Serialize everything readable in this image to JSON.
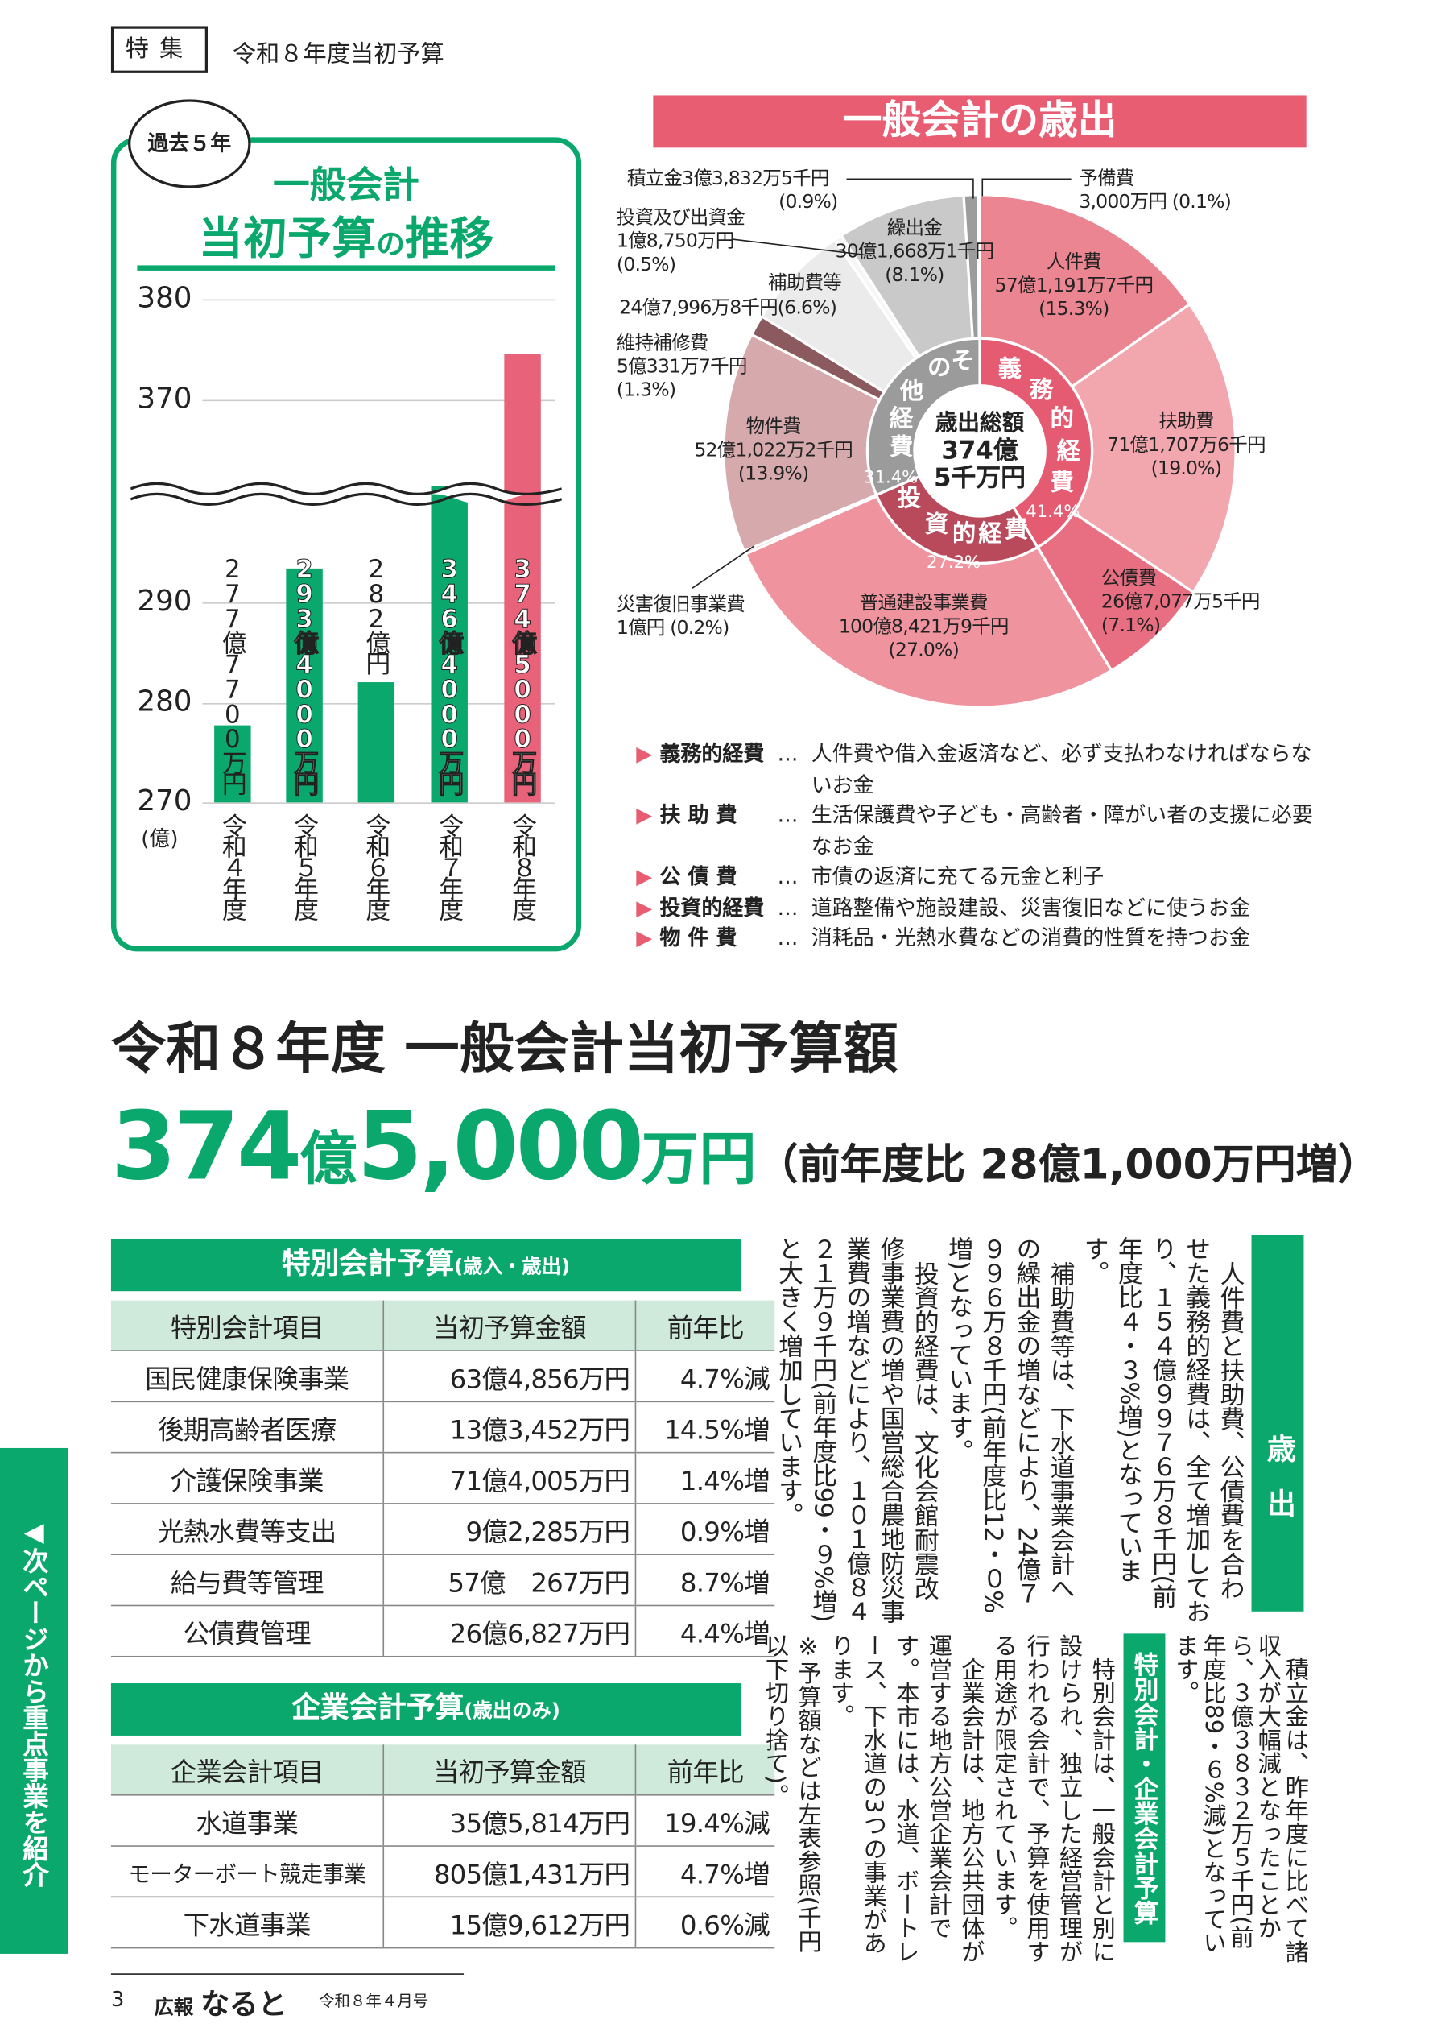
{
  "header": {
    "feature_tag": "特集",
    "section_title": "令和８年度当初予算"
  },
  "trend_chart": {
    "bubble": "過去５年",
    "title_line1": "一般会計",
    "title_line2a": "当初予算",
    "title_line2b": "の",
    "title_line2c": "推移",
    "unit_label": "(億)"
  },
  "expenditure_title": "一般会計の歳出",
  "donut_center": {
    "line1": "歳出総額",
    "line2": "374億",
    "line3": "5千万円"
  },
  "legend": [
    {
      "term": "義務的経費",
      "desc": "人件費や借入金返済など、必ず支払わなければならないお金"
    },
    {
      "term": "扶 助 費",
      "desc": "生活保護費や子ども・高齢者・障がい者の支援に必要なお金"
    },
    {
      "term": "公 債 費",
      "desc": "市債の返済に充てる元金と利子"
    },
    {
      "term": "投資的経費",
      "desc": "道路整備や施設建設、災害復旧などに使うお金"
    },
    {
      "term": "物 件 費",
      "desc": "消耗品・光熱水費などの消費的性質を持つお金"
    }
  ],
  "legend_dots": "…",
  "headline": {
    "title": "令和８年度 一般会計当初予算額",
    "amount_oku": "374",
    "unit_oku": "億",
    "amount_man": "5,000",
    "unit_man": "万円",
    "comparison": "（前年度比 28億1,000万円増）"
  },
  "special_table": {
    "caption": "特別会計予算",
    "caption_note": "(歳入・歳出)",
    "headers": [
      "特別会計項目",
      "当初予算金額",
      "前年比"
    ],
    "rows": [
      [
        "国民健康保険事業",
        "63億4,856万円",
        "4.7%減"
      ],
      [
        "後期高齢者医療",
        "13億3,452万円",
        "14.5%増"
      ],
      [
        "介護保険事業",
        "71億4,005万円",
        "1.4%増"
      ],
      [
        "光熱水費等支出",
        "9億2,285万円",
        "0.9%増"
      ],
      [
        "給与費等管理",
        "57億　267万円",
        "8.7%増"
      ],
      [
        "公債費管理",
        "26億6,827万円",
        "4.4%増"
      ]
    ]
  },
  "enterprise_table": {
    "caption": "企業会計予算",
    "caption_note": "(歳出のみ)",
    "headers": [
      "企業会計項目",
      "当初予算金額",
      "前年比"
    ],
    "rows": [
      [
        "水道事業",
        "35億5,814万円",
        "19.4%減"
      ],
      [
        "モーターボート競走事業",
        "805億1,431万円",
        "4.7%増"
      ],
      [
        "下水道事業",
        "15億9,612万円",
        "0.6%減"
      ]
    ]
  },
  "article": {
    "tag1": "歳出",
    "p1": "人件費と扶助費、公債費を合わせた義務的経費は、全て増加しており、１５４億９９７６万８千円(前年度比４・３%増)となっています。",
    "p2": "補助費等は、下水道事業会計への繰出金の増などにより、24億７９９６万８千円(前年度比12・０%増)となっています。",
    "p3": "投資的経費は、文化会館耐震改修事業費の増や国営総合農地防災事業費の増などにより、１０１億８４２１万９千円(前年度比99・９%増)と大きく増加しています。",
    "p4": "積立金は、昨年度に比べて諸収入が大幅減となったことから、３億３８３２万５千円(前年度比89・６%減)となっています。",
    "tag2": "特別会計・企業会計予算",
    "p5": "特別会計は、一般会計と別に設けられ、独立した経営管理が行われる会計で、予算を使用する用途が限定されています。",
    "p6": "企業会計は、地方公共団体が運営する地方公営企業会計です。本市には、水道、ボートレース、下水道の3つの事業があります。",
    "p7": "※予算額などは左表参照(千円以下切り捨て)。"
  },
  "side_tab": "◀次ページから重点事業を紹介",
  "footer": {
    "page": "3",
    "magazine_prefix": "広報",
    "magazine_name": "なると",
    "issue": "令和８年４月号"
  },
  "chart_data": [
    {
      "type": "bar",
      "title": "一般会計 当初予算の推移",
      "ylabel": "億",
      "yticks": [
        270,
        280,
        290,
        370,
        380
      ],
      "axis_break": [
        300,
        365
      ],
      "categories": [
        "令和４年度",
        "令和５年度",
        "令和６年度",
        "令和７年度",
        "令和８年度"
      ],
      "values": [
        277.77,
        293.4,
        282,
        346.4,
        374.5
      ],
      "value_labels": [
        "277億7700万円",
        "293億4000万円",
        "282億円",
        "346億4000万円",
        "374億5000万円"
      ],
      "colors": [
        "#0aa86c",
        "#0aa86c",
        "#0aa86c",
        "#0aa86c",
        "#e8627a"
      ]
    },
    {
      "type": "pie",
      "title": "一般会計の歳出",
      "total": "374億5千万円",
      "slices": [
        {
          "name": "人件費",
          "amount": "57億1,191万7千円",
          "pct": 15.3,
          "color": "#ec8592"
        },
        {
          "name": "扶助費",
          "amount": "71億1,707万6千円",
          "pct": 19.0,
          "color": "#f2a7ae"
        },
        {
          "name": "公債費",
          "amount": "26億7,077万5千円",
          "pct": 7.1,
          "color": "#e86f82"
        },
        {
          "name": "普通建設事業費",
          "amount": "100億8,421万9千円",
          "pct": 27.0,
          "color": "#ef949e"
        },
        {
          "name": "災害復旧事業費",
          "amount": "1億円",
          "pct": 0.2,
          "color": "#e0b0b4"
        },
        {
          "name": "物件費",
          "amount": "52億1,022万2千円",
          "pct": 13.9,
          "color": "#d6aaad"
        },
        {
          "name": "維持補修費",
          "amount": "5億331万7千円",
          "pct": 1.3,
          "color": "#8a5a5f"
        },
        {
          "name": "補助費等",
          "amount": "24億7,996万8千円",
          "pct": 6.6,
          "color": "#ebebeb"
        },
        {
          "name": "投資及び出資金",
          "amount": "1億8,750万円",
          "pct": 0.5,
          "color": "#f6f6f6"
        },
        {
          "name": "繰出金",
          "amount": "30億1,668万1千円",
          "pct": 8.1,
          "color": "#c9c9c9"
        },
        {
          "name": "積立金",
          "amount": "3億3,832万5千円",
          "pct": 0.9,
          "color": "#9c9c9c"
        },
        {
          "name": "予備費",
          "amount": "3,000万円",
          "pct": 0.1,
          "color": "#777777"
        }
      ],
      "groups": [
        {
          "name": "義務的経費",
          "pct": 41.4,
          "pct_label": "41.4%",
          "color": "#e55c72"
        },
        {
          "name": "投資的経費",
          "pct": 27.2,
          "pct_label": "27.2%",
          "color": "#b84a5c"
        },
        {
          "name": "その他経費",
          "pct": 31.4,
          "pct_label": "31.4%",
          "color": "#9b9b9b"
        }
      ]
    }
  ]
}
